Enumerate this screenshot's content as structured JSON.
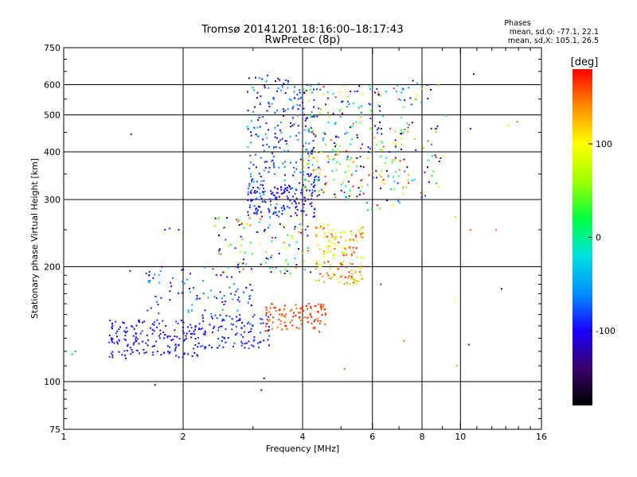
{
  "chart_data": {
    "type": "scatter",
    "title": "Tromsø 20141201 18:16:00–18:17:43",
    "subtitle": "RwPretec (8p)",
    "xlabel": "Frequency [MHz]",
    "ylabel": "Stationary phase Virtual Height [km]",
    "x_scale": "log",
    "y_scale": "log",
    "xlim": [
      1,
      16
    ],
    "ylim": [
      75,
      750
    ],
    "x_ticks": [
      1,
      2,
      4,
      6,
      8,
      10,
      16
    ],
    "x_tick_labels": [
      "1",
      "2",
      "4",
      "6",
      "8",
      "10",
      "16"
    ],
    "y_ticks": [
      75,
      100,
      200,
      300,
      400,
      500,
      600,
      750
    ],
    "y_tick_labels": [
      "75",
      "100",
      "200",
      "300",
      "400",
      "500",
      "600",
      "750"
    ],
    "grid": true,
    "phase_stats": {
      "title": "Phases",
      "line1": "mean, sd,O: -77.1, 22.1",
      "line2": "mean, sd,X: 105.1, 26.5"
    },
    "colorbar": {
      "label": "[deg]",
      "range": [
        -180,
        180
      ],
      "tick_values": [
        100,
        0,
        -100
      ],
      "tick_labels": [
        "100",
        "0",
        "-100"
      ],
      "colors": [
        "#000000",
        "#3a006a",
        "#1a00ff",
        "#0090ff",
        "#00e0e0",
        "#00ff40",
        "#a0ff00",
        "#ffff00",
        "#ff8c00",
        "#ff0000"
      ]
    },
    "clusters": [
      {
        "name": "",
        "freq": [
          1.3,
          2.2
        ],
        "height": [
          115,
          145
        ],
        "phase": [
          -120,
          -80
        ],
        "count": 180
      },
      {
        "name": "",
        "freq": [
          2.2,
          3.3
        ],
        "height": [
          122,
          150
        ],
        "phase": [
          -110,
          -70
        ],
        "count": 110
      },
      {
        "name": "",
        "freq": [
          1.6,
          3.0
        ],
        "height": [
          150,
          200
        ],
        "phase": [
          -140,
          -40
        ],
        "count": 90
      },
      {
        "name": "",
        "freq": [
          3.2,
          4.6
        ],
        "height": [
          135,
          160
        ],
        "phase": [
          140,
          180
        ],
        "count": 110
      },
      {
        "name": "",
        "freq": [
          2.9,
          4.3
        ],
        "height": [
          270,
          330
        ],
        "phase": [
          -140,
          -60
        ],
        "count": 170
      },
      {
        "name": "",
        "freq": [
          2.9,
          4.4
        ],
        "height": [
          330,
          640
        ],
        "phase": [
          -130,
          -40
        ],
        "count": 230
      },
      {
        "name": "",
        "freq": [
          4.3,
          5.7
        ],
        "height": [
          180,
          260
        ],
        "phase": [
          60,
          180
        ],
        "count": 160
      },
      {
        "name": "",
        "freq": [
          4.0,
          5.7
        ],
        "height": [
          300,
          600
        ],
        "phase": [
          -180,
          180
        ],
        "count": 190
      },
      {
        "name": "",
        "freq": [
          5.8,
          7.4
        ],
        "height": [
          280,
          600
        ],
        "phase": [
          -180,
          180
        ],
        "count": 120
      },
      {
        "name": "",
        "freq": [
          7.4,
          9.2
        ],
        "height": [
          300,
          620
        ],
        "phase": [
          -180,
          180
        ],
        "count": 45
      },
      {
        "name": "",
        "freq": [
          2.4,
          4.2
        ],
        "height": [
          190,
          270
        ],
        "phase": [
          -180,
          180
        ],
        "count": 110
      }
    ],
    "points": [
      {
        "x": 1.07,
        "y": 120,
        "phase": -60
      },
      {
        "x": 1.05,
        "y": 118,
        "phase": -40
      },
      {
        "x": 1.48,
        "y": 445,
        "phase": -120
      },
      {
        "x": 1.47,
        "y": 195,
        "phase": -110
      },
      {
        "x": 1.8,
        "y": 250,
        "phase": -110
      },
      {
        "x": 1.85,
        "y": 252,
        "phase": -90
      },
      {
        "x": 1.95,
        "y": 250,
        "phase": -100
      },
      {
        "x": 1.7,
        "y": 98,
        "phase": -120
      },
      {
        "x": 3.15,
        "y": 95,
        "phase": -120
      },
      {
        "x": 3.2,
        "y": 102,
        "phase": -110
      },
      {
        "x": 5.1,
        "y": 108,
        "phase": 150
      },
      {
        "x": 10.8,
        "y": 640,
        "phase": -140
      },
      {
        "x": 10.6,
        "y": 460,
        "phase": -120
      },
      {
        "x": 13.2,
        "y": 470,
        "phase": 110
      },
      {
        "x": 13.9,
        "y": 480,
        "phase": 150
      },
      {
        "x": 9.7,
        "y": 270,
        "phase": 120
      },
      {
        "x": 10.6,
        "y": 250,
        "phase": 150
      },
      {
        "x": 12.3,
        "y": 250,
        "phase": 150
      },
      {
        "x": 9.7,
        "y": 165,
        "phase": 100
      },
      {
        "x": 10.5,
        "y": 125,
        "phase": -110
      },
      {
        "x": 12.7,
        "y": 175,
        "phase": -130
      },
      {
        "x": 9.8,
        "y": 110,
        "phase": 130
      },
      {
        "x": 6.3,
        "y": 180,
        "phase": -80
      },
      {
        "x": 7.2,
        "y": 128,
        "phase": 150
      }
    ]
  }
}
